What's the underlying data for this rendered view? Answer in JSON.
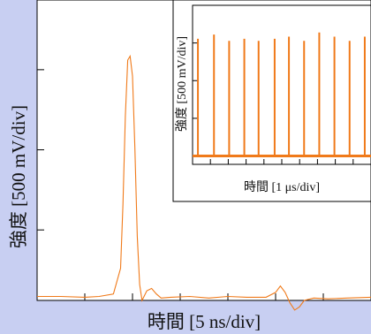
{
  "chart_data": [
    {
      "type": "line",
      "xlabel": "時間 [5 ns/div]",
      "ylabel": "強度 [500 mV/div]",
      "xunit_per_div": "5 ns",
      "yunit_per_div": "500 mV",
      "xlim": [
        0,
        7
      ],
      "ylim": [
        0,
        3.75
      ],
      "grid": false,
      "line_color": "#f07a1a",
      "series": [
        {
          "x": [
            0,
            0.5,
            1.0,
            1.3,
            1.6,
            1.75,
            1.8,
            1.85,
            1.9,
            1.95,
            2.0,
            2.05,
            2.1,
            2.15,
            2.2,
            2.3,
            2.4,
            2.5,
            2.6,
            2.8,
            3.2,
            3.6,
            4.0,
            4.4,
            4.8,
            5.0,
            5.1,
            5.2,
            5.3,
            5.4,
            5.5,
            5.6,
            5.8,
            6.1,
            6.5,
            7.0
          ],
          "y": [
            0.05,
            0.05,
            0.04,
            0.05,
            0.08,
            0.4,
            1.2,
            2.3,
            3.0,
            3.05,
            2.8,
            1.9,
            0.8,
            0.2,
            0.0,
            0.12,
            0.15,
            0.08,
            0.03,
            0.04,
            0.05,
            0.03,
            0.05,
            0.04,
            0.04,
            0.1,
            0.18,
            0.1,
            -0.03,
            -0.12,
            -0.08,
            0.0,
            0.03,
            0.02,
            0.03,
            0.04
          ]
        }
      ]
    },
    {
      "type": "line",
      "xlabel": "時間 [1 μs/div]",
      "ylabel": "強度 [500 mV/div]",
      "xunit_per_div": "1 μs",
      "yunit_per_div": "500 mV",
      "xlim": [
        0,
        10
      ],
      "ylim": [
        -0.2,
        3.6
      ],
      "grid": false,
      "line_color": "#f07a1a",
      "pulse_times": [
        0.3,
        1.2,
        2.05,
        2.9,
        3.7,
        4.6,
        5.4,
        6.25,
        7.1,
        7.95,
        8.8,
        9.65
      ],
      "pulse_heights": [
        2.8,
        2.9,
        2.75,
        2.8,
        2.75,
        2.8,
        2.85,
        2.75,
        2.95,
        2.85,
        2.75,
        2.85
      ],
      "baseline": 0
    }
  ]
}
